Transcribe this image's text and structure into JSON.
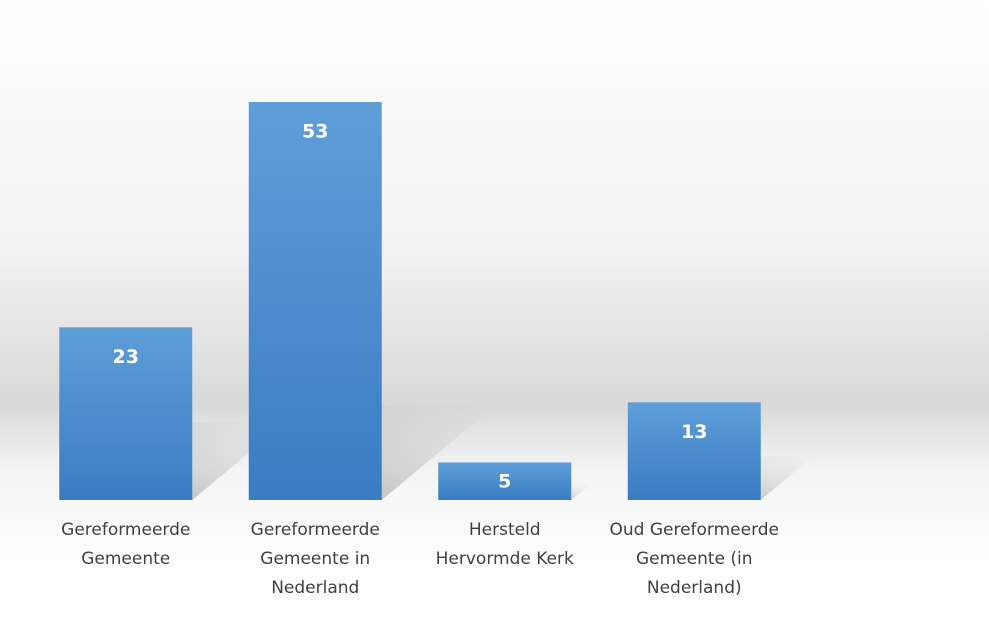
{
  "chart_data": {
    "type": "bar",
    "categories": [
      "Gereformeerde Gemeente",
      "Gereformeerde Gemeente in Nederland",
      "Hersteld Hervormde Kerk",
      "Oud Gereformeerde Gemeente (in Nederland)"
    ],
    "values": [
      23,
      53,
      5,
      13
    ],
    "color": "#5b9bd5"
  }
}
